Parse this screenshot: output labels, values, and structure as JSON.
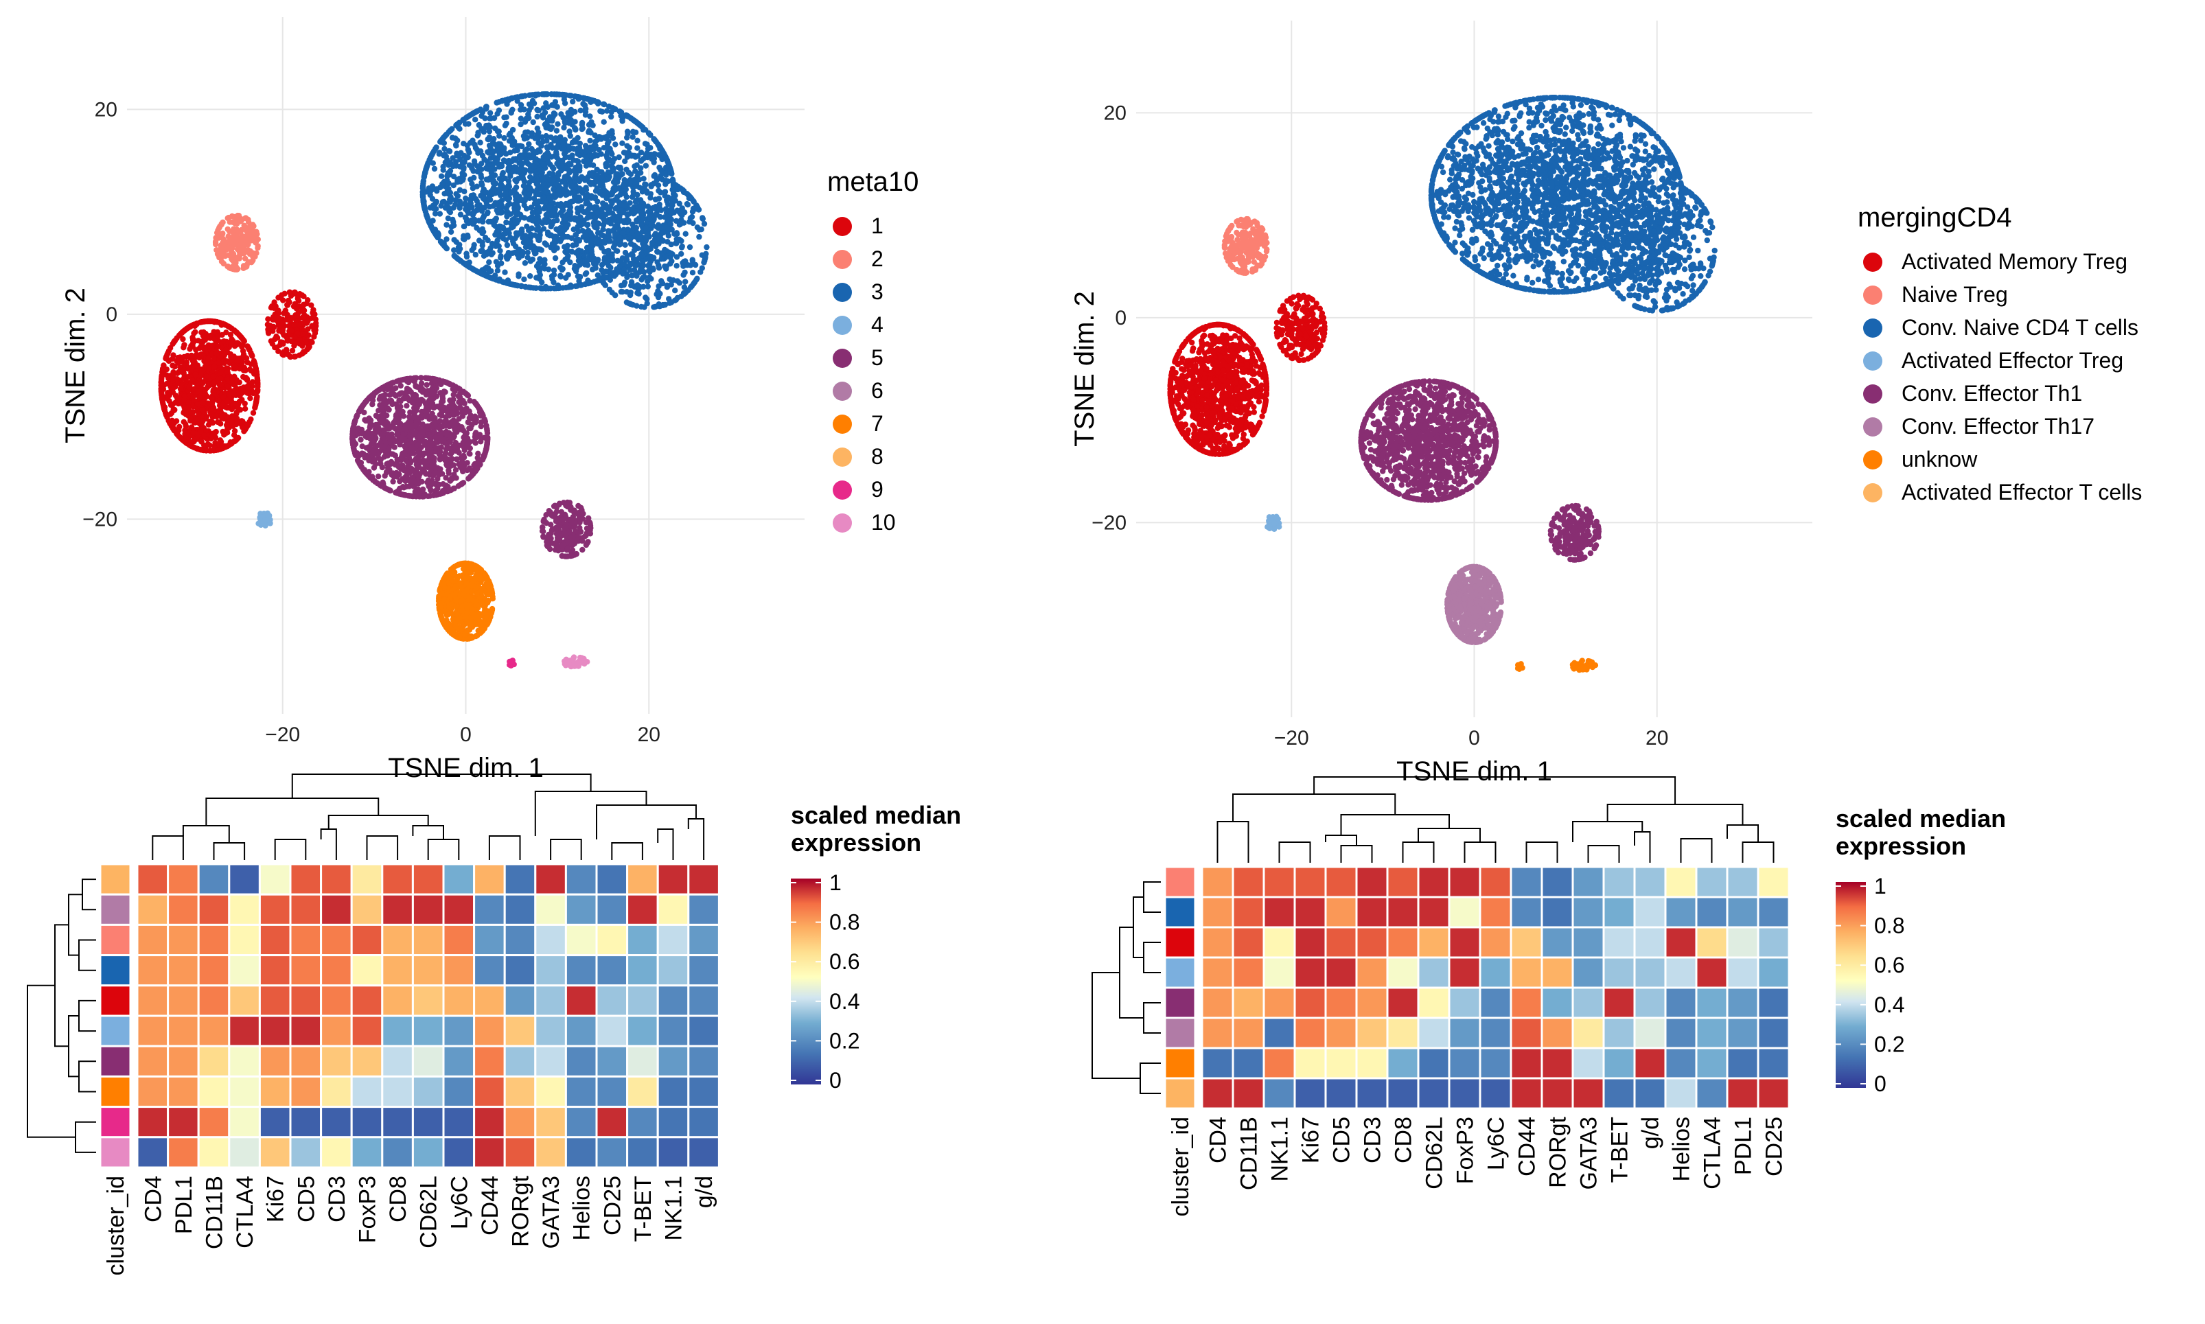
{
  "chart_data": [
    {
      "type": "scatter",
      "panel": "tsne-left",
      "xlabel": "TSNE dim. 1",
      "ylabel": "TSNE dim. 2",
      "xlim": [
        -37,
        37
      ],
      "ylim": [
        -39,
        29
      ],
      "xticks": [
        -20,
        0,
        20
      ],
      "yticks": [
        -20,
        0,
        20
      ],
      "xtick_labels": [
        "−20",
        "0",
        "20"
      ],
      "ytick_labels": [
        "−20",
        "0",
        "20"
      ],
      "grid": true,
      "legend": {
        "title": "meta10",
        "placement": "right",
        "entries": [
          {
            "label": "1",
            "color": "#DC050C"
          },
          {
            "label": "2",
            "color": "#FB8072"
          },
          {
            "label": "3",
            "color": "#1965B0"
          },
          {
            "label": "4",
            "color": "#7BAFDE"
          },
          {
            "label": "5",
            "color": "#882E72"
          },
          {
            "label": "6",
            "color": "#B17BA6"
          },
          {
            "label": "7",
            "color": "#FF7F00"
          },
          {
            "label": "8",
            "color": "#FDB462"
          },
          {
            "label": "9",
            "color": "#E7298A"
          },
          {
            "label": "10",
            "color": "#E78AC3"
          }
        ]
      },
      "clusters": [
        {
          "id": "3",
          "color": "#1965B0",
          "cx": 9,
          "cy": 12,
          "sx": 13,
          "sy": 9,
          "n": 2400
        },
        {
          "id": "3",
          "color": "#1965B0",
          "cx": 20,
          "cy": 7,
          "sx": 6,
          "sy": 6,
          "n": 500
        },
        {
          "id": "1",
          "color": "#DC050C",
          "cx": -28,
          "cy": -7,
          "sx": 5,
          "sy": 6,
          "n": 1100
        },
        {
          "id": "1",
          "color": "#DC050C",
          "cx": -19,
          "cy": -1,
          "sx": 2.5,
          "sy": 3,
          "n": 220
        },
        {
          "id": "2",
          "color": "#FB8072",
          "cx": -25,
          "cy": 7,
          "sx": 2.2,
          "sy": 2.5,
          "n": 220
        },
        {
          "id": "5",
          "color": "#882E72",
          "cx": -5,
          "cy": -12,
          "sx": 7,
          "sy": 5.5,
          "n": 1300
        },
        {
          "id": "5",
          "color": "#882E72",
          "cx": 11,
          "cy": -21,
          "sx": 2.5,
          "sy": 2.5,
          "n": 200
        },
        {
          "id": "7",
          "color": "#FF7F00",
          "cx": 0,
          "cy": -28,
          "sx": 2.8,
          "sy": 3.5,
          "n": 650
        },
        {
          "id": "4",
          "color": "#7BAFDE",
          "cx": -22,
          "cy": -20,
          "sx": 0.8,
          "sy": 0.6,
          "n": 30
        },
        {
          "id": "10",
          "color": "#E78AC3",
          "cx": 12,
          "cy": -34,
          "sx": 1.2,
          "sy": 0.5,
          "n": 40
        },
        {
          "id": "9",
          "color": "#E7298A",
          "cx": 5,
          "cy": -34,
          "sx": 0.3,
          "sy": 0.3,
          "n": 6
        }
      ]
    },
    {
      "type": "scatter",
      "panel": "tsne-right",
      "xlabel": "TSNE dim. 1",
      "ylabel": "TSNE dim. 2",
      "xlim": [
        -37,
        37
      ],
      "ylim": [
        -39,
        29
      ],
      "xticks": [
        -20,
        0,
        20
      ],
      "yticks": [
        -20,
        0,
        20
      ],
      "xtick_labels": [
        "−20",
        "0",
        "20"
      ],
      "ytick_labels": [
        "−20",
        "0",
        "20"
      ],
      "grid": true,
      "legend": {
        "title": "mergingCD4",
        "placement": "right",
        "entries": [
          {
            "label": "Activated Memory Treg",
            "color": "#DC050C"
          },
          {
            "label": "Naive Treg",
            "color": "#FB8072"
          },
          {
            "label": "Conv. Naive CD4 T cells",
            "color": "#1965B0"
          },
          {
            "label": "Activated Effector Treg",
            "color": "#7BAFDE"
          },
          {
            "label": "Conv. Effector Th1",
            "color": "#882E72"
          },
          {
            "label": "Conv. Effector Th17",
            "color": "#B17BA6"
          },
          {
            "label": "unknow",
            "color": "#FF7F00"
          },
          {
            "label": "Activated Effector T cells",
            "color": "#FDB462"
          }
        ]
      },
      "clusters": [
        {
          "id": "Conv. Naive CD4 T cells",
          "color": "#1965B0",
          "cx": 9,
          "cy": 12,
          "sx": 13,
          "sy": 9,
          "n": 2400
        },
        {
          "id": "Conv. Naive CD4 T cells",
          "color": "#1965B0",
          "cx": 20,
          "cy": 7,
          "sx": 6,
          "sy": 6,
          "n": 500
        },
        {
          "id": "Activated Memory Treg",
          "color": "#DC050C",
          "cx": -28,
          "cy": -7,
          "sx": 5,
          "sy": 6,
          "n": 1100
        },
        {
          "id": "Activated Memory Treg",
          "color": "#DC050C",
          "cx": -19,
          "cy": -1,
          "sx": 2.5,
          "sy": 3,
          "n": 220
        },
        {
          "id": "Naive Treg",
          "color": "#FB8072",
          "cx": -25,
          "cy": 7,
          "sx": 2.2,
          "sy": 2.5,
          "n": 220
        },
        {
          "id": "Conv. Effector Th1",
          "color": "#882E72",
          "cx": -5,
          "cy": -12,
          "sx": 7,
          "sy": 5.5,
          "n": 1300
        },
        {
          "id": "Conv. Effector Th1",
          "color": "#882E72",
          "cx": 11,
          "cy": -21,
          "sx": 2.5,
          "sy": 2.5,
          "n": 200
        },
        {
          "id": "Conv. Effector Th17",
          "color": "#B17BA6",
          "cx": 0,
          "cy": -28,
          "sx": 2.8,
          "sy": 3.5,
          "n": 650
        },
        {
          "id": "Activated Effector Treg",
          "color": "#7BAFDE",
          "cx": -22,
          "cy": -20,
          "sx": 0.8,
          "sy": 0.6,
          "n": 30
        },
        {
          "id": "unknow",
          "color": "#FF7F00",
          "cx": 12,
          "cy": -34,
          "sx": 1.2,
          "sy": 0.5,
          "n": 40
        },
        {
          "id": "unknow",
          "color": "#FF7F00",
          "cx": 5,
          "cy": -34,
          "sx": 0.3,
          "sy": 0.3,
          "n": 6
        }
      ]
    },
    {
      "type": "heatmap",
      "panel": "heatmap-left",
      "colorbar": {
        "title": [
          "scaled median",
          "expression"
        ],
        "ticks": [
          "0",
          "0.2",
          "0.4",
          "0.6",
          "0.8",
          "1"
        ],
        "range": [
          0,
          1
        ]
      },
      "row_label": "cluster_id",
      "columns": [
        "CD4",
        "PDL1",
        "CD11B",
        "CTLA4",
        "Ki67",
        "CD5",
        "CD3",
        "FoxP3",
        "CD8",
        "CD62L",
        "Ly6C",
        "CD44",
        "RORgt",
        "GATA3",
        "Helios",
        "CD25",
        "T-BET",
        "NK1.1",
        "g/d"
      ],
      "rows": [
        {
          "cluster": "8",
          "color": "#FDB462",
          "values": [
            0.9,
            0.85,
            0.2,
            0.1,
            0.5,
            0.9,
            0.9,
            0.6,
            0.9,
            0.9,
            0.3,
            0.75,
            0.15,
            0.95,
            0.2,
            0.15,
            0.75,
            0.95,
            0.95
          ]
        },
        {
          "cluster": "6",
          "color": "#B17BA6",
          "values": [
            0.75,
            0.85,
            0.9,
            0.55,
            0.9,
            0.9,
            0.95,
            0.7,
            0.95,
            0.95,
            0.95,
            0.2,
            0.15,
            0.5,
            0.25,
            0.2,
            0.95,
            0.55,
            0.2
          ]
        },
        {
          "cluster": "2",
          "color": "#FB8072",
          "values": [
            0.8,
            0.8,
            0.85,
            0.55,
            0.9,
            0.85,
            0.85,
            0.9,
            0.75,
            0.75,
            0.85,
            0.25,
            0.2,
            0.4,
            0.5,
            0.55,
            0.3,
            0.4,
            0.25
          ]
        },
        {
          "cluster": "3",
          "color": "#1965B0",
          "values": [
            0.8,
            0.8,
            0.85,
            0.5,
            0.9,
            0.85,
            0.85,
            0.55,
            0.75,
            0.75,
            0.8,
            0.2,
            0.15,
            0.35,
            0.2,
            0.2,
            0.3,
            0.35,
            0.2
          ]
        },
        {
          "cluster": "1",
          "color": "#DC050C",
          "values": [
            0.8,
            0.8,
            0.85,
            0.7,
            0.9,
            0.9,
            0.85,
            0.9,
            0.75,
            0.7,
            0.75,
            0.75,
            0.25,
            0.35,
            0.95,
            0.35,
            0.35,
            0.2,
            0.2
          ]
        },
        {
          "cluster": "4",
          "color": "#7BAFDE",
          "values": [
            0.8,
            0.8,
            0.8,
            0.95,
            0.95,
            0.95,
            0.8,
            0.9,
            0.3,
            0.3,
            0.25,
            0.8,
            0.7,
            0.35,
            0.25,
            0.4,
            0.3,
            0.2,
            0.15
          ]
        },
        {
          "cluster": "5",
          "color": "#882E72",
          "values": [
            0.8,
            0.8,
            0.65,
            0.5,
            0.8,
            0.8,
            0.7,
            0.7,
            0.4,
            0.45,
            0.25,
            0.85,
            0.35,
            0.4,
            0.2,
            0.25,
            0.45,
            0.25,
            0.2
          ]
        },
        {
          "cluster": "7",
          "color": "#FF7F00",
          "values": [
            0.8,
            0.8,
            0.55,
            0.5,
            0.75,
            0.8,
            0.6,
            0.4,
            0.4,
            0.35,
            0.2,
            0.9,
            0.7,
            0.55,
            0.2,
            0.2,
            0.6,
            0.15,
            0.15
          ]
        },
        {
          "cluster": "9",
          "color": "#E7298A",
          "values": [
            0.95,
            0.95,
            0.85,
            0.5,
            0.1,
            0.1,
            0.1,
            0.1,
            0.1,
            0.1,
            0.1,
            0.95,
            0.8,
            0.7,
            0.2,
            0.95,
            0.2,
            0.15,
            0.15
          ]
        },
        {
          "cluster": "10",
          "color": "#E78AC3",
          "values": [
            0.1,
            0.85,
            0.55,
            0.45,
            0.7,
            0.35,
            0.55,
            0.3,
            0.2,
            0.3,
            0.1,
            0.95,
            0.9,
            0.7,
            0.15,
            0.2,
            0.15,
            0.1,
            0.1
          ]
        }
      ]
    },
    {
      "type": "heatmap",
      "panel": "heatmap-right",
      "colorbar": {
        "title": [
          "scaled median",
          "expression"
        ],
        "ticks": [
          "0",
          "0.2",
          "0.4",
          "0.6",
          "0.8",
          "1"
        ],
        "range": [
          0,
          1
        ]
      },
      "row_label": "cluster_id",
      "columns": [
        "CD4",
        "CD11B",
        "NK1.1",
        "Ki67",
        "CD5",
        "CD3",
        "CD8",
        "CD62L",
        "FoxP3",
        "Ly6C",
        "CD44",
        "RORgt",
        "GATA3",
        "T-BET",
        "g/d",
        "Helios",
        "CTLA4",
        "PDL1",
        "CD25"
      ],
      "rows": [
        {
          "cluster": "Naive Treg",
          "color": "#FB8072",
          "values": [
            0.8,
            0.9,
            0.9,
            0.9,
            0.9,
            0.95,
            0.9,
            0.95,
            0.95,
            0.9,
            0.2,
            0.15,
            0.25,
            0.35,
            0.35,
            0.55,
            0.35,
            0.35,
            0.55
          ]
        },
        {
          "cluster": "Conv. Naive CD4 T cells",
          "color": "#1965B0",
          "values": [
            0.8,
            0.9,
            0.95,
            0.95,
            0.8,
            0.95,
            0.95,
            0.95,
            0.5,
            0.85,
            0.2,
            0.15,
            0.25,
            0.3,
            0.4,
            0.25,
            0.2,
            0.25,
            0.2
          ]
        },
        {
          "cluster": "Activated Memory Treg",
          "color": "#DC050C",
          "values": [
            0.8,
            0.9,
            0.55,
            0.95,
            0.9,
            0.9,
            0.85,
            0.75,
            0.95,
            0.8,
            0.7,
            0.25,
            0.25,
            0.4,
            0.4,
            0.95,
            0.65,
            0.45,
            0.35
          ]
        },
        {
          "cluster": "Activated Effector Treg",
          "color": "#7BAFDE",
          "values": [
            0.8,
            0.85,
            0.5,
            0.95,
            0.95,
            0.8,
            0.5,
            0.35,
            0.95,
            0.3,
            0.75,
            0.75,
            0.25,
            0.35,
            0.35,
            0.4,
            0.95,
            0.4,
            0.3
          ]
        },
        {
          "cluster": "Conv. Effector Th1",
          "color": "#882E72",
          "values": [
            0.8,
            0.75,
            0.8,
            0.9,
            0.85,
            0.8,
            0.95,
            0.55,
            0.35,
            0.2,
            0.85,
            0.3,
            0.35,
            0.95,
            0.35,
            0.2,
            0.3,
            0.25,
            0.15
          ]
        },
        {
          "cluster": "Conv. Effector Th17",
          "color": "#B17BA6",
          "values": [
            0.8,
            0.8,
            0.15,
            0.85,
            0.8,
            0.7,
            0.6,
            0.4,
            0.25,
            0.2,
            0.9,
            0.8,
            0.6,
            0.35,
            0.45,
            0.2,
            0.3,
            0.25,
            0.15
          ]
        },
        {
          "cluster": "unknow",
          "color": "#FF7F00",
          "values": [
            0.15,
            0.15,
            0.85,
            0.55,
            0.55,
            0.55,
            0.3,
            0.15,
            0.2,
            0.2,
            0.95,
            0.95,
            0.4,
            0.3,
            0.95,
            0.2,
            0.3,
            0.15,
            0.15
          ]
        },
        {
          "cluster": "Activated Effector T cells",
          "color": "#FDB462",
          "values": [
            0.95,
            0.95,
            0.2,
            0.1,
            0.1,
            0.1,
            0.1,
            0.1,
            0.1,
            0.1,
            0.95,
            0.95,
            0.95,
            0.15,
            0.15,
            0.4,
            0.2,
            0.95,
            0.95
          ]
        }
      ]
    }
  ]
}
